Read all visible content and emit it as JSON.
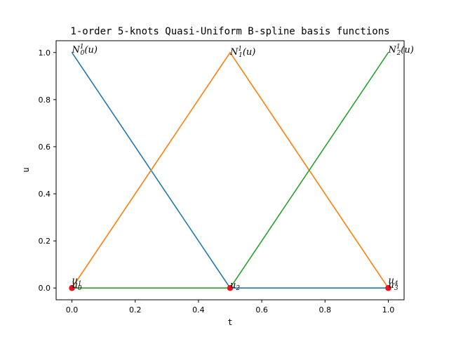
{
  "chart_data": {
    "type": "line",
    "title": "1-order 5-knots Quasi-Uniform B-spline basis functions",
    "xlabel": "t",
    "ylabel": "u",
    "xlim": [
      -0.05,
      1.05
    ],
    "ylim": [
      -0.05,
      1.05
    ],
    "xticks": [
      "0.0",
      "0.2",
      "0.4",
      "0.6",
      "0.8",
      "1.0"
    ],
    "yticks": [
      "0.0",
      "0.2",
      "0.4",
      "0.6",
      "0.8",
      "1.0"
    ],
    "grid": false,
    "legend": "none",
    "series": [
      {
        "color": "#1f77b4",
        "x": [
          0.0,
          0.5,
          1.0
        ],
        "y": [
          1.0,
          0.0,
          0.0
        ]
      },
      {
        "color": "#ff7f0e",
        "x": [
          0.0,
          0.5,
          1.0
        ],
        "y": [
          0.0,
          1.0,
          0.0
        ]
      },
      {
        "color": "#2ca02c",
        "x": [
          0.0,
          0.5,
          1.0
        ],
        "y": [
          0.0,
          0.0,
          1.0
        ]
      }
    ],
    "knots": {
      "color": "#e8141c",
      "x": [
        0.0,
        0.0,
        0.5,
        1.0,
        1.0
      ],
      "y": [
        0.0,
        0.0,
        0.0,
        0.0,
        0.0
      ]
    },
    "annotations": [
      {
        "text": "N",
        "sub": "0",
        "sup": "1",
        "tail": "(u)",
        "x": 0.0,
        "y": 1.0
      },
      {
        "text": "N",
        "sub": "1",
        "sup": "1",
        "tail": "(u)",
        "x": 0.5,
        "y": 0.99
      },
      {
        "text": "N",
        "sub": "2",
        "sup": "1",
        "tail": "(u)",
        "x": 1.0,
        "y": 1.0
      },
      {
        "text": "u",
        "sub": "0",
        "sup": "",
        "tail": "",
        "x": 0.0,
        "y": 0.0
      },
      {
        "text": "u",
        "sub": "1",
        "sup": "",
        "tail": "",
        "x": 0.0,
        "y": 0.02
      },
      {
        "text": "u",
        "sub": "2",
        "sup": "",
        "tail": "",
        "x": 0.5,
        "y": 0.0
      },
      {
        "text": "u",
        "sub": "3",
        "sup": "",
        "tail": "",
        "x": 1.0,
        "y": 0.0
      },
      {
        "text": "u",
        "sub": "4",
        "sup": "",
        "tail": "",
        "x": 1.0,
        "y": 0.02
      }
    ]
  }
}
